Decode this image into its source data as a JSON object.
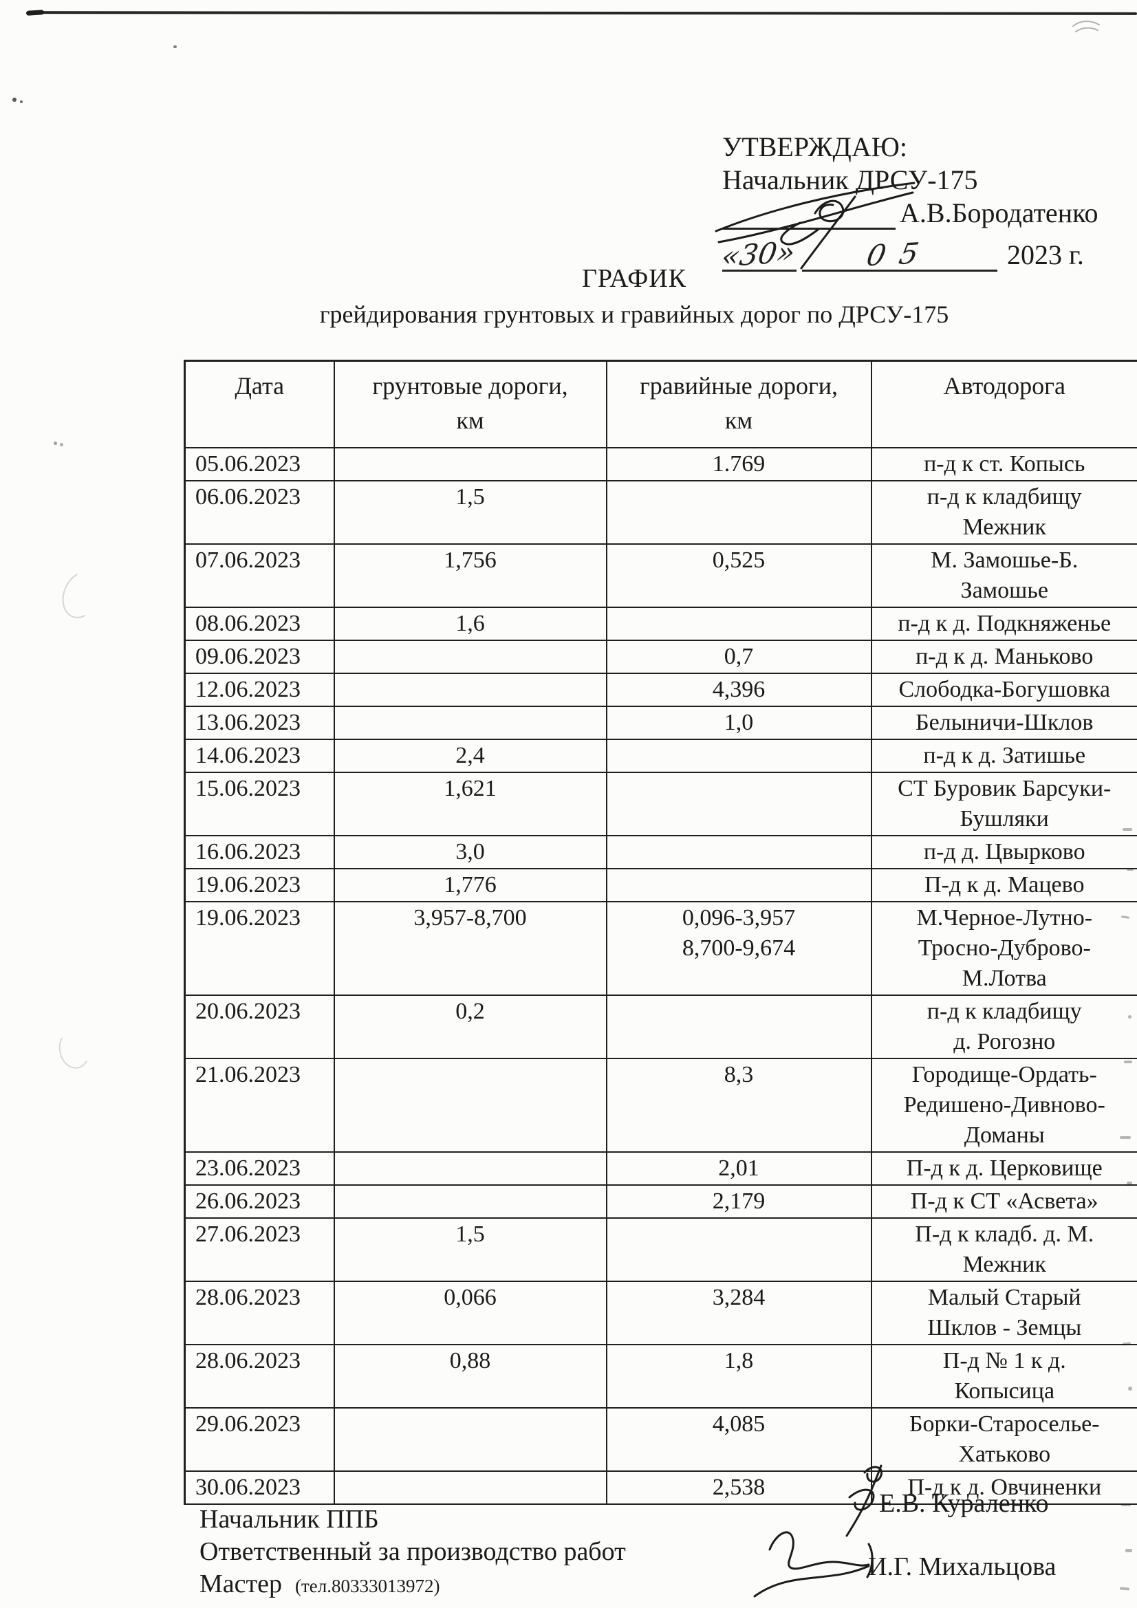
{
  "colors": {
    "ink": "#1b1b1b",
    "paper": "#fcfcfa"
  },
  "approval": {
    "approve_word": "УТВЕРЖДАЮ:",
    "approver_title": "Начальник ДРСУ-175",
    "approver_name": "А.В.Бородатенко",
    "day": "«30»",
    "month": "05",
    "year": "2023 г."
  },
  "title": {
    "heading": "ГРАФИК",
    "subtitle": "грейдирования грунтовых и гравийных дорог по ДРСУ-175"
  },
  "table": {
    "headers": [
      "Дата",
      "грунтовые дороги,\nкм",
      "гравийные дороги,\nкм",
      "Автодорога"
    ],
    "rows": [
      {
        "date": "05.06.2023",
        "dirt": "",
        "gravel": "1.769",
        "road": "п-д к ст. Копысь"
      },
      {
        "date": "06.06.2023",
        "dirt": "1,5",
        "gravel": "",
        "road": "п-д к кладбищу\nМежник"
      },
      {
        "date": "07.06.2023",
        "dirt": "1,756",
        "gravel": "0,525",
        "road": "М. Замошье-Б.\nЗамошье"
      },
      {
        "date": "08.06.2023",
        "dirt": "1,6",
        "gravel": "",
        "road": "п-д к д. Подкняженье"
      },
      {
        "date": "09.06.2023",
        "dirt": "",
        "gravel": "0,7",
        "road": "п-д к д. Маньково"
      },
      {
        "date": "12.06.2023",
        "dirt": "",
        "gravel": "4,396",
        "road": "Слободка-Богушовка"
      },
      {
        "date": "13.06.2023",
        "dirt": "",
        "gravel": "1,0",
        "road": "Белыничи-Шклов"
      },
      {
        "date": "14.06.2023",
        "dirt": "2,4",
        "gravel": "",
        "road": "п-д к д. Затишье"
      },
      {
        "date": "15.06.2023",
        "dirt": "1,621",
        "gravel": "",
        "road": "СТ Буровик Барсуки-\nБушляки"
      },
      {
        "date": "16.06.2023",
        "dirt": "3,0",
        "gravel": "",
        "road": "п-д д. Цвырково"
      },
      {
        "date": "19.06.2023",
        "dirt": "1,776",
        "gravel": "",
        "road": "П-д к д. Мацево"
      },
      {
        "date": "19.06.2023",
        "dirt": "3,957-8,700",
        "gravel": "0,096-3,957\n8,700-9,674",
        "road": "М.Черное-Лутно-\nТросно-Дуброво-\nМ.Лотва"
      },
      {
        "date": "20.06.2023",
        "dirt": "0,2",
        "gravel": "",
        "road": "п-д к кладбищу\nд. Рогозно"
      },
      {
        "date": "21.06.2023",
        "dirt": "",
        "gravel": "8,3",
        "road": "Городище-Ордать-\nРедишено-Дивново-\nДоманы"
      },
      {
        "date": "23.06.2023",
        "dirt": "",
        "gravel": "2,01",
        "road": "П-д к д. Церковище"
      },
      {
        "date": "26.06.2023",
        "dirt": "",
        "gravel": "2,179",
        "road": "П-д к СТ «Асвета»"
      },
      {
        "date": "27.06.2023",
        "dirt": "1,5",
        "gravel": "",
        "road": "П-д к кладб. д. М.\nМежник"
      },
      {
        "date": "28.06.2023",
        "dirt": "0,066",
        "gravel": "3,284",
        "road": "Малый Старый\nШклов - Земцы"
      },
      {
        "date": "28.06.2023",
        "dirt": "0,88",
        "gravel": "1,8",
        "road": "П-д № 1 к д.\nКопысица"
      },
      {
        "date": "29.06.2023",
        "dirt": "",
        "gravel": "4,085",
        "road": "Борки-Староселье-\nХатьково"
      },
      {
        "date": "30.06.2023",
        "dirt": "",
        "gravel": "2,538",
        "road": "П-д к д. Овчиненки"
      }
    ]
  },
  "footer": {
    "role1": "Начальник ППБ",
    "role2": "Ответственный за производство работ",
    "role3": "Мастер",
    "phone": "(тел.80333013972)",
    "signer1": "Е.В. Кураленко",
    "signer2": "И.Г. Михальцова"
  }
}
